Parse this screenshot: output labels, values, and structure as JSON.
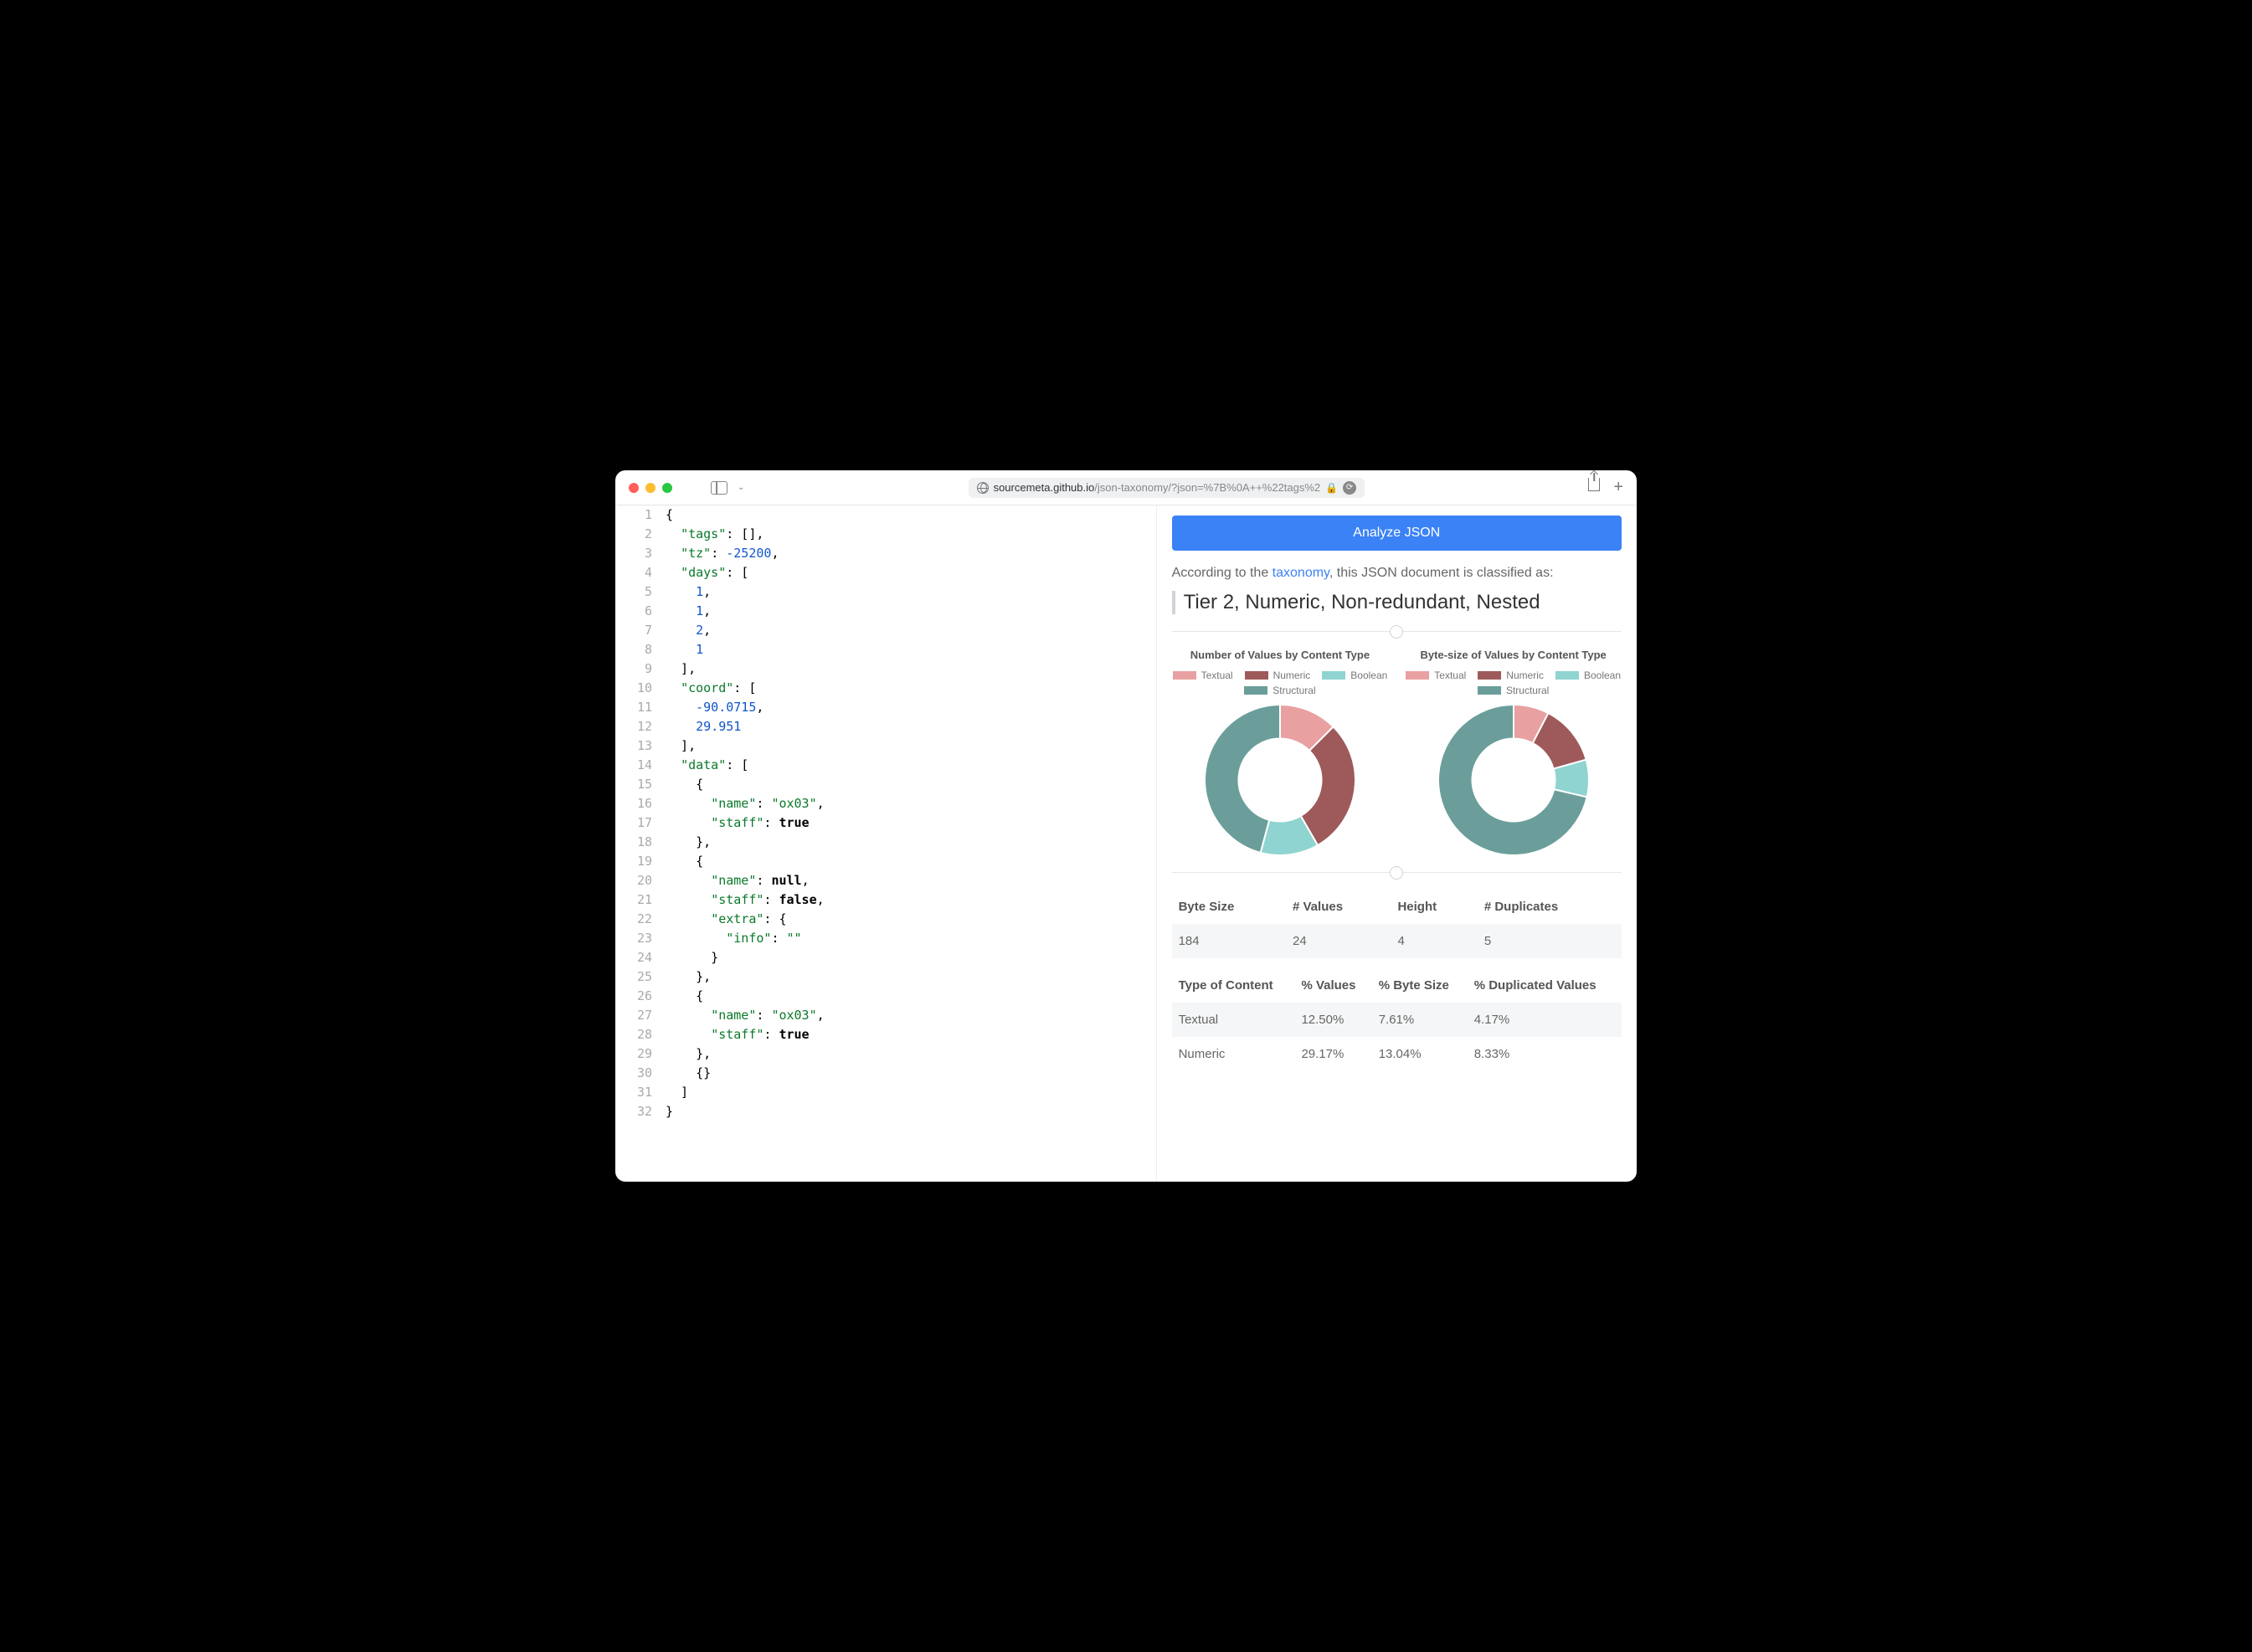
{
  "browser": {
    "url_host": "sourcemeta.github.io",
    "url_path": "/json-taxonomy/?json=%7B%0A++%22tags%2"
  },
  "editor": {
    "lines": [
      {
        "n": 1,
        "t": "{",
        "cls": "p"
      },
      {
        "n": 2,
        "t": "  \"tags\": [],",
        "segs": [
          [
            "  ",
            "p"
          ],
          [
            "\"tags\"",
            "k"
          ],
          [
            ": [],",
            "p"
          ]
        ]
      },
      {
        "n": 3,
        "segs": [
          [
            "  ",
            "p"
          ],
          [
            "\"tz\"",
            "k"
          ],
          [
            ": ",
            "p"
          ],
          [
            "-25200",
            "n"
          ],
          [
            ",",
            "p"
          ]
        ]
      },
      {
        "n": 4,
        "segs": [
          [
            "  ",
            "p"
          ],
          [
            "\"days\"",
            "k"
          ],
          [
            ": [",
            "p"
          ]
        ]
      },
      {
        "n": 5,
        "segs": [
          [
            "    ",
            "p"
          ],
          [
            "1",
            "n"
          ],
          [
            ",",
            "p"
          ]
        ]
      },
      {
        "n": 6,
        "segs": [
          [
            "    ",
            "p"
          ],
          [
            "1",
            "n"
          ],
          [
            ",",
            "p"
          ]
        ]
      },
      {
        "n": 7,
        "segs": [
          [
            "    ",
            "p"
          ],
          [
            "2",
            "n"
          ],
          [
            ",",
            "p"
          ]
        ]
      },
      {
        "n": 8,
        "segs": [
          [
            "    ",
            "p"
          ],
          [
            "1",
            "n"
          ]
        ]
      },
      {
        "n": 9,
        "segs": [
          [
            "  ],",
            "p"
          ]
        ]
      },
      {
        "n": 10,
        "segs": [
          [
            "  ",
            "p"
          ],
          [
            "\"coord\"",
            "k"
          ],
          [
            ": [",
            "p"
          ]
        ]
      },
      {
        "n": 11,
        "segs": [
          [
            "    ",
            "p"
          ],
          [
            "-90.0715",
            "n"
          ],
          [
            ",",
            "p"
          ]
        ]
      },
      {
        "n": 12,
        "segs": [
          [
            "    ",
            "p"
          ],
          [
            "29.951",
            "n"
          ]
        ]
      },
      {
        "n": 13,
        "segs": [
          [
            "  ],",
            "p"
          ]
        ]
      },
      {
        "n": 14,
        "segs": [
          [
            "  ",
            "p"
          ],
          [
            "\"data\"",
            "k"
          ],
          [
            ": [",
            "p"
          ]
        ]
      },
      {
        "n": 15,
        "segs": [
          [
            "    {",
            "p"
          ]
        ]
      },
      {
        "n": 16,
        "segs": [
          [
            "      ",
            "p"
          ],
          [
            "\"name\"",
            "k"
          ],
          [
            ": ",
            "p"
          ],
          [
            "\"ox03\"",
            "k"
          ],
          [
            ",",
            "p"
          ]
        ]
      },
      {
        "n": 17,
        "segs": [
          [
            "      ",
            "p"
          ],
          [
            "\"staff\"",
            "k"
          ],
          [
            ": ",
            "p"
          ],
          [
            "true",
            "b"
          ]
        ]
      },
      {
        "n": 18,
        "segs": [
          [
            "    },",
            "p"
          ]
        ]
      },
      {
        "n": 19,
        "segs": [
          [
            "    {",
            "p"
          ]
        ]
      },
      {
        "n": 20,
        "segs": [
          [
            "      ",
            "p"
          ],
          [
            "\"name\"",
            "k"
          ],
          [
            ": ",
            "p"
          ],
          [
            "null",
            "b"
          ],
          [
            ",",
            "p"
          ]
        ]
      },
      {
        "n": 21,
        "segs": [
          [
            "      ",
            "p"
          ],
          [
            "\"staff\"",
            "k"
          ],
          [
            ": ",
            "p"
          ],
          [
            "false",
            "b"
          ],
          [
            ",",
            "p"
          ]
        ]
      },
      {
        "n": 22,
        "segs": [
          [
            "      ",
            "p"
          ],
          [
            "\"extra\"",
            "k"
          ],
          [
            ": {",
            "p"
          ]
        ]
      },
      {
        "n": 23,
        "segs": [
          [
            "        ",
            "p"
          ],
          [
            "\"info\"",
            "k"
          ],
          [
            ": ",
            "p"
          ],
          [
            "\"\"",
            "k"
          ]
        ]
      },
      {
        "n": 24,
        "segs": [
          [
            "      }",
            "p"
          ]
        ]
      },
      {
        "n": 25,
        "segs": [
          [
            "    },",
            "p"
          ]
        ]
      },
      {
        "n": 26,
        "segs": [
          [
            "    {",
            "p"
          ]
        ]
      },
      {
        "n": 27,
        "segs": [
          [
            "      ",
            "p"
          ],
          [
            "\"name\"",
            "k"
          ],
          [
            ": ",
            "p"
          ],
          [
            "\"ox03\"",
            "k"
          ],
          [
            ",",
            "p"
          ]
        ]
      },
      {
        "n": 28,
        "segs": [
          [
            "      ",
            "p"
          ],
          [
            "\"staff\"",
            "k"
          ],
          [
            ": ",
            "p"
          ],
          [
            "true",
            "b"
          ]
        ]
      },
      {
        "n": 29,
        "segs": [
          [
            "    },",
            "p"
          ]
        ]
      },
      {
        "n": 30,
        "segs": [
          [
            "    {}",
            "p"
          ]
        ]
      },
      {
        "n": 31,
        "segs": [
          [
            "  ]",
            "p"
          ]
        ]
      },
      {
        "n": 32,
        "segs": [
          [
            "}",
            "p"
          ]
        ]
      }
    ]
  },
  "panel": {
    "button": "Analyze JSON",
    "intro_before": "According to the ",
    "intro_link": "taxonomy",
    "intro_after": ", this JSON document is classified as:",
    "classification": "Tier 2, Numeric, Non-redundant, Nested",
    "legend": [
      {
        "label": "Textual",
        "color": "#e8a0a0"
      },
      {
        "label": "Numeric",
        "color": "#9e5a5a"
      },
      {
        "label": "Boolean",
        "color": "#8fd4d0"
      },
      {
        "label": "Structural",
        "color": "#6b9e9a"
      }
    ],
    "chart1": {
      "title": "Number of Values by Content Type",
      "slices": [
        {
          "label": "Textual",
          "value": 12.5,
          "color": "#e8a0a0"
        },
        {
          "label": "Numeric",
          "value": 29.17,
          "color": "#9e5a5a"
        },
        {
          "label": "Boolean",
          "value": 12.5,
          "color": "#8fd4d0"
        },
        {
          "label": "Structural",
          "value": 45.83,
          "color": "#6b9e9a"
        }
      ],
      "inner_ratio": 0.55,
      "size": 180
    },
    "chart2": {
      "title": "Byte-size of Values by Content Type",
      "slices": [
        {
          "label": "Textual",
          "value": 7.61,
          "color": "#e8a0a0"
        },
        {
          "label": "Numeric",
          "value": 13.04,
          "color": "#9e5a5a"
        },
        {
          "label": "Boolean",
          "value": 8.0,
          "color": "#8fd4d0"
        },
        {
          "label": "Structural",
          "value": 71.35,
          "color": "#6b9e9a"
        }
      ],
      "inner_ratio": 0.55,
      "size": 180
    },
    "stats_table": {
      "headers": [
        "Byte Size",
        "# Values",
        "Height",
        "# Duplicates"
      ],
      "row": [
        "184",
        "24",
        "4",
        "5"
      ]
    },
    "content_table": {
      "headers": [
        "Type of Content",
        "% Values",
        "% Byte Size",
        "% Duplicated Values"
      ],
      "rows": [
        [
          "Textual",
          "12.50%",
          "7.61%",
          "4.17%"
        ],
        [
          "Numeric",
          "29.17%",
          "13.04%",
          "8.33%"
        ]
      ]
    }
  }
}
